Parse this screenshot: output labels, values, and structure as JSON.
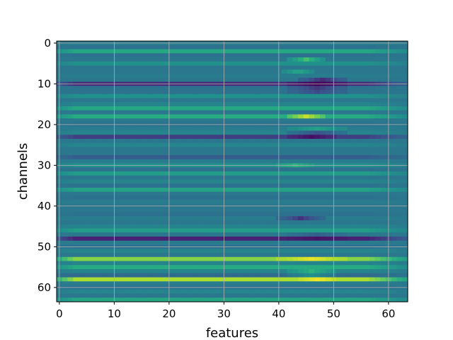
{
  "chart_data": {
    "type": "heatmap",
    "title": "",
    "xlabel": "features",
    "ylabel": "channels",
    "n_rows": 64,
    "n_cols": 64,
    "xlim": [
      -0.5,
      63.5
    ],
    "ylim": [
      63.5,
      -0.5
    ],
    "xticks": [
      0,
      10,
      20,
      30,
      40,
      50,
      60
    ],
    "yticks": [
      0,
      10,
      20,
      30,
      40,
      50,
      60
    ],
    "grid": true,
    "colormap": "viridis",
    "value_range": [
      0,
      1
    ],
    "row_values": [
      0.42,
      0.38,
      0.6,
      0.38,
      0.4,
      0.5,
      0.4,
      0.4,
      0.42,
      0.4,
      0.15,
      0.38,
      0.38,
      0.5,
      0.4,
      0.45,
      0.6,
      0.4,
      0.62,
      0.4,
      0.38,
      0.42,
      0.45,
      0.2,
      0.4,
      0.45,
      0.4,
      0.4,
      0.3,
      0.42,
      0.5,
      0.38,
      0.55,
      0.4,
      0.45,
      0.38,
      0.58,
      0.4,
      0.38,
      0.42,
      0.4,
      0.4,
      0.38,
      0.42,
      0.4,
      0.45,
      0.55,
      0.4,
      0.12,
      0.42,
      0.38,
      0.45,
      0.4,
      0.82,
      0.45,
      0.62,
      0.45,
      0.35,
      0.88,
      0.42,
      0.38,
      0.45,
      0.4,
      0.6
    ],
    "local_features": [
      {
        "row": 4,
        "cols": [
          42,
          48
        ],
        "delta": 0.3
      },
      {
        "row": 7,
        "cols": [
          41,
          46
        ],
        "delta": 0.2
      },
      {
        "row": 9,
        "cols": [
          44,
          52
        ],
        "delta": -0.25
      },
      {
        "row": 10,
        "cols": [
          42,
          52
        ],
        "delta": -0.15
      },
      {
        "row": 11,
        "cols": [
          42,
          52
        ],
        "delta": -0.2
      },
      {
        "row": 12,
        "cols": [
          42,
          52
        ],
        "delta": -0.15
      },
      {
        "row": 18,
        "cols": [
          42,
          48
        ],
        "delta": 0.3
      },
      {
        "row": 21,
        "cols": [
          42,
          52
        ],
        "delta": 0.15
      },
      {
        "row": 22,
        "cols": [
          42,
          52
        ],
        "delta": -0.2
      },
      {
        "row": 23,
        "cols": [
          42,
          50
        ],
        "delta": -0.15
      },
      {
        "row": 30,
        "cols": [
          40,
          46
        ],
        "delta": 0.15
      },
      {
        "row": 43,
        "cols": [
          40,
          48
        ],
        "delta": -0.25
      },
      {
        "row": 47,
        "cols": [
          42,
          52
        ],
        "delta": -0.1
      },
      {
        "row": 48,
        "cols": [
          42,
          52
        ],
        "delta": -0.05
      },
      {
        "row": 53,
        "cols": [
          40,
          52
        ],
        "delta": 0.15
      },
      {
        "row": 56,
        "cols": [
          42,
          50
        ],
        "delta": 0.2
      },
      {
        "row": 57,
        "cols": [
          42,
          50
        ],
        "delta": 0.15
      },
      {
        "row": 58,
        "cols": [
          44,
          50
        ],
        "delta": 0.1
      }
    ],
    "fade_out_cols": [
      56,
      63
    ]
  }
}
